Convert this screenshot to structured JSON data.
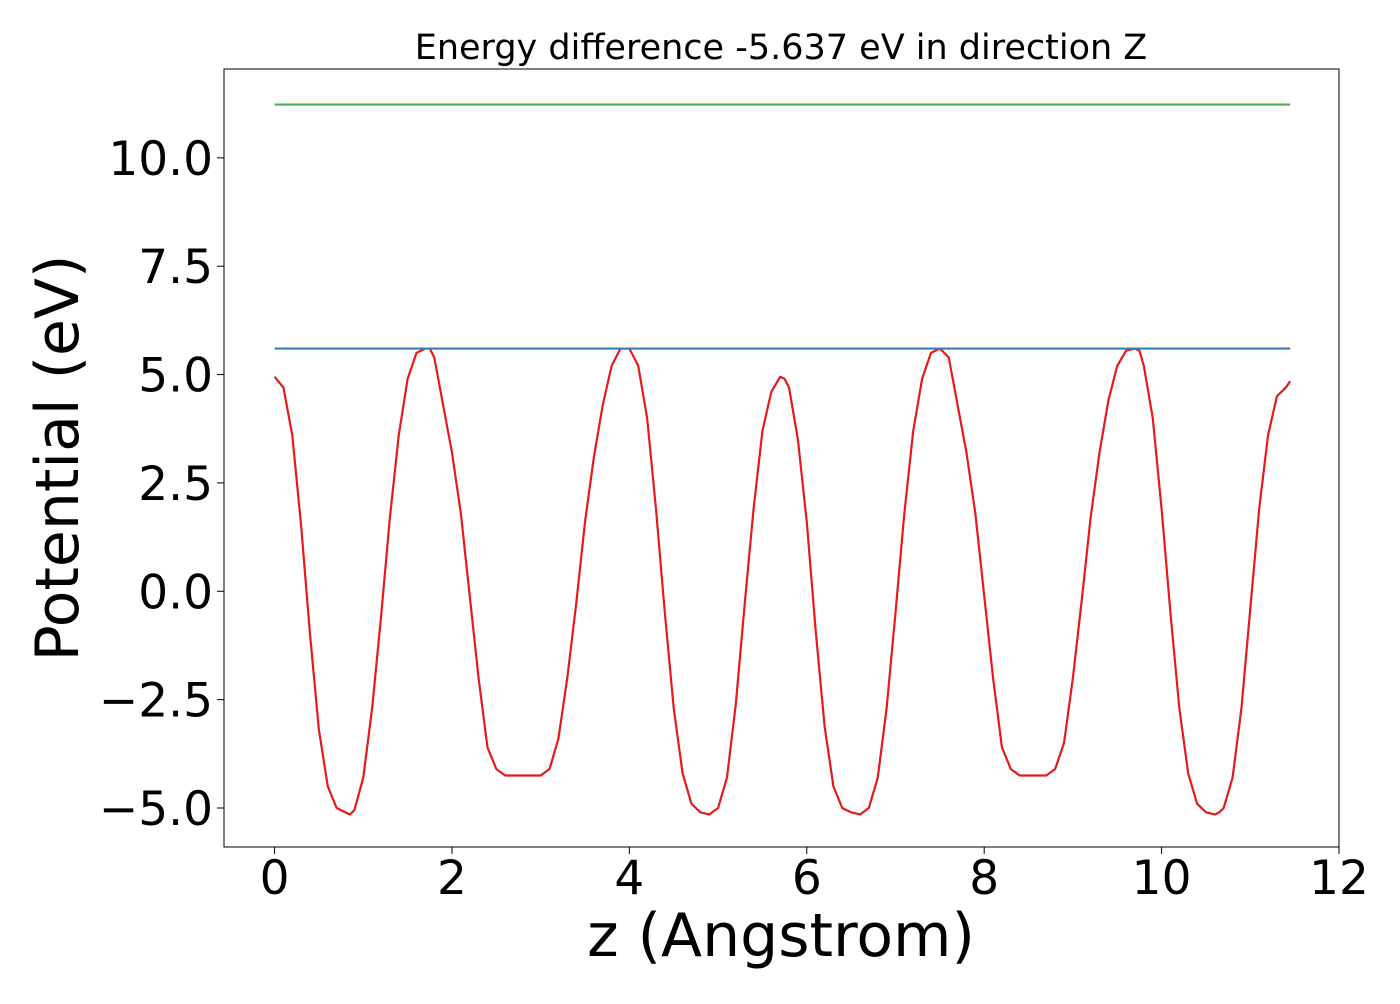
{
  "chart_data": {
    "type": "line",
    "title": "Energy difference -5.637 eV in direction Z",
    "xlabel": "z (Angstrom)",
    "ylabel": "Potential (eV)",
    "xlim": [
      -0.57,
      12.0
    ],
    "ylim": [
      -5.9,
      12.05
    ],
    "xticks": [
      0,
      2,
      4,
      6,
      8,
      10,
      12
    ],
    "xtick_labels": [
      "0",
      "2",
      "4",
      "6",
      "8",
      "10",
      "12"
    ],
    "yticks": [
      -5.0,
      -2.5,
      0.0,
      2.5,
      5.0,
      7.5,
      10.0
    ],
    "ytick_labels": [
      "−5.0",
      "−2.5",
      "0.0",
      "2.5",
      "5.0",
      "7.5",
      "10.0"
    ],
    "grid": false,
    "legend": "none",
    "colors": {
      "potential": "#e41a1c",
      "upper_level": "#4daf4a",
      "lower_level": "#377eb8"
    },
    "series": [
      {
        "color": "#e41a1c",
        "x": [
          0.0,
          0.1,
          0.2,
          0.3,
          0.4,
          0.5,
          0.6,
          0.7,
          0.8,
          0.85,
          0.9,
          1.0,
          1.1,
          1.2,
          1.3,
          1.4,
          1.5,
          1.6,
          1.7,
          1.75,
          1.8,
          1.9,
          2.0,
          2.1,
          2.2,
          2.3,
          2.4,
          2.5,
          2.6,
          2.7,
          2.8,
          2.9,
          3.0,
          3.1,
          3.2,
          3.3,
          3.4,
          3.5,
          3.6,
          3.7,
          3.8,
          3.9,
          4.0,
          4.1,
          4.2,
          4.3,
          4.4,
          4.5,
          4.6,
          4.7,
          4.8,
          4.9,
          5.0,
          5.1,
          5.2,
          5.3,
          5.4,
          5.5,
          5.6,
          5.7,
          5.75,
          5.8,
          5.9,
          6.0,
          6.1,
          6.2,
          6.3,
          6.4,
          6.5,
          6.6,
          6.7,
          6.8,
          6.9,
          7.0,
          7.1,
          7.2,
          7.3,
          7.4,
          7.5,
          7.6,
          7.7,
          7.8,
          7.9,
          8.0,
          8.1,
          8.2,
          8.3,
          8.4,
          8.5,
          8.6,
          8.7,
          8.8,
          8.9,
          9.0,
          9.1,
          9.2,
          9.3,
          9.4,
          9.5,
          9.6,
          9.7,
          9.75,
          9.8,
          9.9,
          10.0,
          10.1,
          10.2,
          10.3,
          10.4,
          10.5,
          10.6,
          10.65,
          10.7,
          10.8,
          10.9,
          11.0,
          11.1,
          11.2,
          11.3,
          11.4,
          11.45
        ],
        "y": [
          4.95,
          4.7,
          3.6,
          1.5,
          -1.0,
          -3.2,
          -4.5,
          -5.0,
          -5.1,
          -5.15,
          -5.05,
          -4.3,
          -2.7,
          -0.6,
          1.7,
          3.6,
          4.9,
          5.5,
          5.6,
          5.6,
          5.4,
          4.3,
          3.2,
          1.8,
          -0.1,
          -2.0,
          -3.6,
          -4.1,
          -4.25,
          -4.25,
          -4.25,
          -4.25,
          -4.25,
          -4.1,
          -3.4,
          -2.0,
          -0.3,
          1.6,
          3.1,
          4.3,
          5.2,
          5.6,
          5.6,
          5.2,
          4.0,
          1.9,
          -0.5,
          -2.7,
          -4.2,
          -4.9,
          -5.1,
          -5.15,
          -5.0,
          -4.3,
          -2.6,
          -0.3,
          1.9,
          3.7,
          4.6,
          4.95,
          4.9,
          4.7,
          3.5,
          1.6,
          -0.9,
          -3.1,
          -4.5,
          -5.0,
          -5.1,
          -5.15,
          -5.0,
          -4.3,
          -2.7,
          -0.5,
          1.8,
          3.7,
          4.9,
          5.5,
          5.6,
          5.4,
          4.3,
          3.2,
          1.8,
          -0.1,
          -2.0,
          -3.6,
          -4.1,
          -4.25,
          -4.25,
          -4.25,
          -4.25,
          -4.1,
          -3.5,
          -2.0,
          -0.2,
          1.7,
          3.2,
          4.4,
          5.2,
          5.55,
          5.6,
          5.55,
          5.2,
          4.0,
          1.9,
          -0.5,
          -2.7,
          -4.2,
          -4.9,
          -5.1,
          -5.15,
          -5.1,
          -5.0,
          -4.3,
          -2.7,
          -0.4,
          1.9,
          3.6,
          4.5,
          4.7,
          4.85
        ]
      },
      {
        "color": "#4daf4a",
        "x": [
          0.0,
          11.45
        ],
        "y": [
          11.23,
          11.23
        ]
      },
      {
        "color": "#377eb8",
        "x": [
          0.0,
          11.45
        ],
        "y": [
          5.6,
          5.6
        ]
      }
    ]
  }
}
